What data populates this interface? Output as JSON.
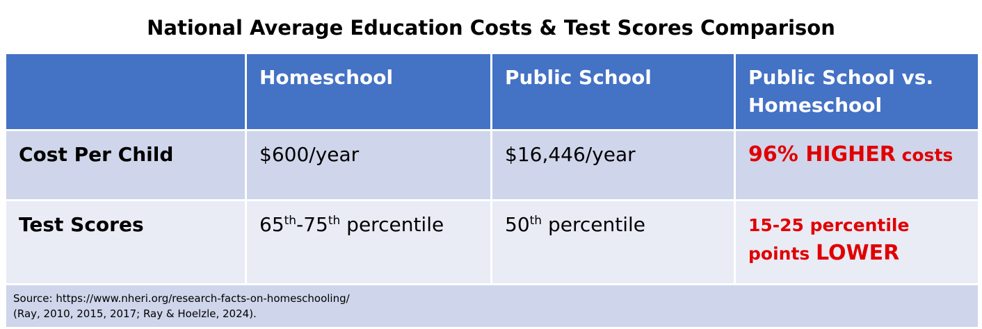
{
  "title": "National Average Education Costs & Test Scores Comparison",
  "table": {
    "header": [
      "Homeschool",
      "Public School",
      "Public School vs. Homeschool"
    ],
    "rows": [
      {
        "label": "Cost Per Child",
        "cells": [
          [
            "$600/year"
          ],
          [
            "$16,446/year"
          ],
          [
            "96% HIGHER",
            " costs"
          ]
        ]
      },
      {
        "label": "Test Scores",
        "cells": [
          [
            "65",
            "th",
            "-75",
            "th",
            " percentile"
          ],
          [
            "50",
            "th",
            " percentile"
          ],
          [
            "15-25 percentile points ",
            "LOWER"
          ]
        ]
      }
    ]
  },
  "source": [
    "Source: https://www.nheri.org/research-facts-on-homeschooling/",
    "(Ray, 2010, 2015, 2017; Ray & Hoelzle, 2024)."
  ]
}
